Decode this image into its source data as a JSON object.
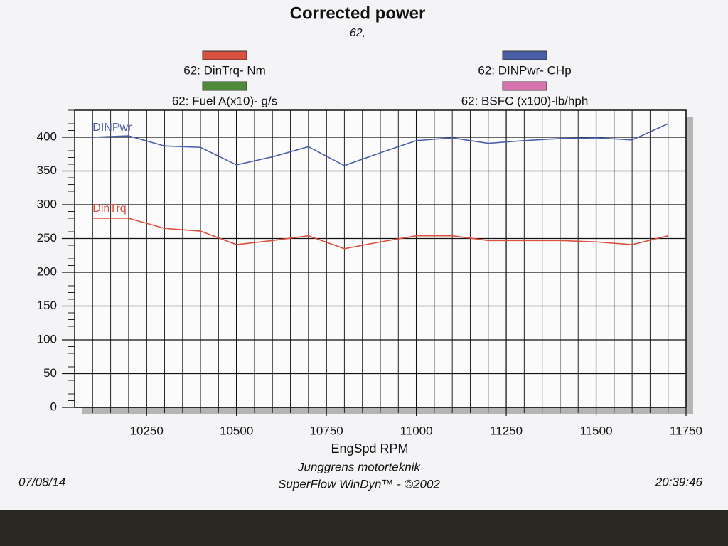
{
  "chart_data": {
    "type": "line",
    "title": "Corrected power",
    "subtitle": "62,",
    "xlabel": "EngSpd  RPM",
    "legend": [
      {
        "name": "62: DinTrq-  Nm",
        "color": "#d9503f"
      },
      {
        "name": "62: DINPwr- CHp",
        "color": "#4a5fa8"
      },
      {
        "name": "62: Fuel A(x10)- g/s",
        "color": "#4f8a3a"
      },
      {
        "name": "62:  BSFC (x100)-lb/hph",
        "color": "#d774b0"
      }
    ],
    "x": [
      10100,
      10200,
      10300,
      10400,
      10500,
      10600,
      10700,
      10800,
      10900,
      11000,
      11100,
      11200,
      11300,
      11400,
      11500,
      11600,
      11700
    ],
    "series": [
      {
        "name": "DINPwr",
        "color": "#4a5fa8",
        "values": [
          400,
          402,
          387,
          385,
          359,
          371,
          386,
          358,
          377,
          395,
          399,
          391,
          395,
          398,
          399,
          396,
          420
        ]
      },
      {
        "name": "DinTrq",
        "color": "#d9503f",
        "values": [
          280,
          280,
          265,
          261,
          241,
          247,
          254,
          235,
          245,
          254,
          254,
          247,
          247,
          247,
          245,
          241,
          254
        ]
      }
    ],
    "xlim": [
      10050,
      11750
    ],
    "xticks": [
      10250,
      10500,
      10750,
      11000,
      11250,
      11500,
      11750
    ],
    "ylim": [
      0,
      440
    ],
    "yticks": [
      0,
      50,
      100,
      150,
      200,
      250,
      300,
      350,
      400
    ],
    "grid": true,
    "footer": {
      "date": "07/08/14",
      "company": "Junggrens motorteknik",
      "software": "SuperFlow WinDyn™ - ©2002",
      "time": "20:39:46"
    }
  }
}
